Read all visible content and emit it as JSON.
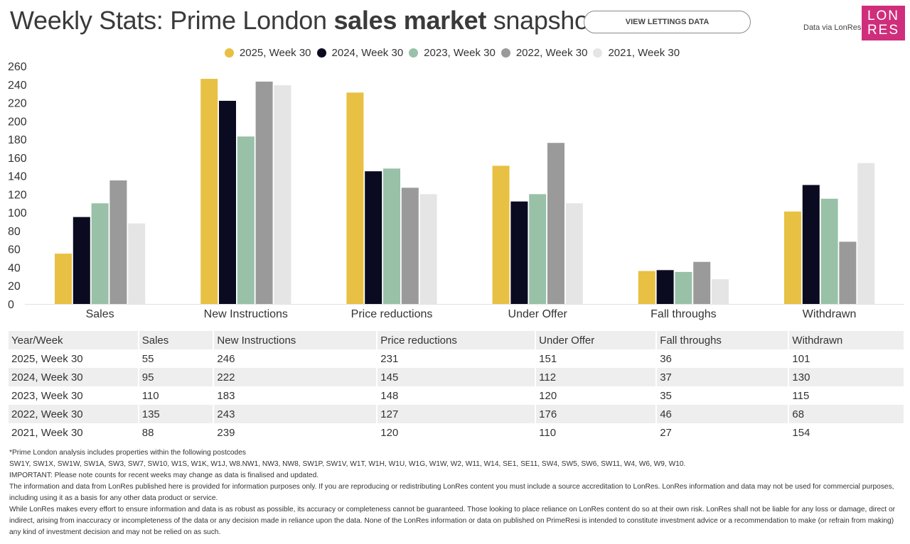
{
  "header": {
    "title_part1": "Weekly Stats: Prime London ",
    "title_bold": "sales market",
    "title_part2": " snapshot",
    "button_label": "VIEW LETTINGS DATA",
    "data_via": "Data via LonRes",
    "logo_line1": "LON",
    "logo_line2": "RES",
    "logo_color": "#cf2e7c"
  },
  "chart_data": {
    "type": "bar",
    "title": "Weekly Stats: Prime London sales market snapshot",
    "xlabel": "",
    "ylabel": "",
    "ylim": [
      0,
      260
    ],
    "yticks": [
      0,
      20,
      40,
      60,
      80,
      100,
      120,
      140,
      160,
      180,
      200,
      220,
      240,
      260
    ],
    "grid": false,
    "legend_position": "top-center",
    "categories": [
      "Sales",
      "New Instructions",
      "Price reductions",
      "Under Offer",
      "Fall throughs",
      "Withdrawn"
    ],
    "series": [
      {
        "name": "2025, Week 30",
        "color": "#e8c043",
        "values": [
          55,
          246,
          231,
          151,
          36,
          101
        ]
      },
      {
        "name": "2024, Week 30",
        "color": "#0a0a20",
        "values": [
          95,
          222,
          145,
          112,
          37,
          130
        ]
      },
      {
        "name": "2023, Week 30",
        "color": "#98c1a8",
        "values": [
          110,
          183,
          148,
          120,
          35,
          115
        ]
      },
      {
        "name": "2022, Week 30",
        "color": "#9a9a9a",
        "values": [
          135,
          243,
          127,
          176,
          46,
          68
        ]
      },
      {
        "name": "2021, Week 30",
        "color": "#e5e5e5",
        "values": [
          88,
          239,
          120,
          110,
          27,
          154
        ]
      }
    ]
  },
  "table": {
    "headers": [
      "Year/Week",
      "Sales",
      "New Instructions",
      "Price reductions",
      "Under Offer",
      "Fall throughs",
      "Withdrawn"
    ],
    "rows": [
      [
        "2025, Week 30",
        "55",
        "246",
        "231",
        "151",
        "36",
        "101"
      ],
      [
        "2024, Week 30",
        "95",
        "222",
        "145",
        "112",
        "37",
        "130"
      ],
      [
        "2023, Week 30",
        "110",
        "183",
        "148",
        "120",
        "35",
        "115"
      ],
      [
        "2022, Week 30",
        "135",
        "243",
        "127",
        "176",
        "46",
        "68"
      ],
      [
        "2021, Week 30",
        "88",
        "239",
        "120",
        "110",
        "27",
        "154"
      ]
    ]
  },
  "notes": {
    "postcodes_intro": "*Prime London analysis includes properties within the following postcodes",
    "postcodes": "SW1Y, SW1X, SW1W, SW1A, SW3, SW7, SW10, W1S, W1K, W1J, W8.NW1, NW3, NW8, SW1P, SW1V, W1T, W1H, W1U, W1G, W1W, W2, W11, W14, SE1, SE11, SW4, SW5, SW6, SW11, W4, W6, W9, W10.",
    "important": "IMPORTANT: Please note counts for recent weeks may change as data is finalised and updated.",
    "info": "The information and data from LonRes published here is provided for information purposes only. If you are reproducing or redistributing LonRes content you must include a source accreditation to LonRes. LonRes information and data may not be used for commercial purposes, including using it as a basis for any other data product or service.",
    "disclaimer": "While LonRes makes every effort to ensure information and data is as robust as possible, its accuracy or completeness cannot be guaranteed. Those looking to place reliance on LonRes content do so at their own risk. LonRes shall not be liable for any loss or damage, direct or indirect, arising from inaccuracy or incompleteness of the data or any decision made in reliance upon the data. None of the LonRes information or data on published on PrimeResi is intended to constitute investment advice or a recommendation to make (or refrain from making) any kind of investment decision and may not be relied on as such."
  }
}
